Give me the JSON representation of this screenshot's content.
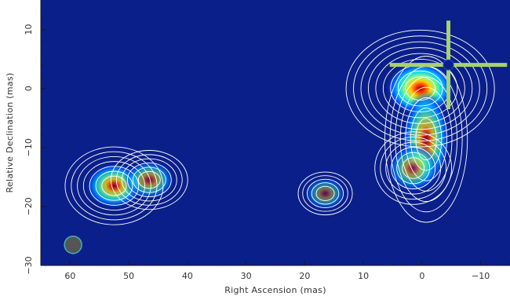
{
  "chart_data": {
    "type": "heatmap",
    "title": "",
    "xlabel": "Right Ascension  (mas)",
    "ylabel": "Relative Declination  (mas)",
    "xlim": [
      65,
      -15
    ],
    "ylim": [
      -30,
      15
    ],
    "x_ticks": [
      60,
      50,
      40,
      30,
      20,
      10,
      0,
      -10
    ],
    "y_ticks": [
      10,
      0,
      -10,
      -20,
      -30
    ],
    "colormap": "jet",
    "background_color": "#0a1f8a",
    "contour_color": "#ffffff",
    "components": [
      {
        "x": 0.3,
        "y": 0.0,
        "peak": 1.0,
        "sx": 2.3,
        "sy": 1.8
      },
      {
        "x": -0.7,
        "y": -8.6,
        "peak": 0.55,
        "sx": 1.6,
        "sy": 3.2
      },
      {
        "x": 1.5,
        "y": -13.5,
        "peak": 0.35,
        "sx": 1.7,
        "sy": 1.6
      },
      {
        "x": 52.5,
        "y": -16.5,
        "peak": 0.62,
        "sx": 1.9,
        "sy": 1.5
      },
      {
        "x": 46.5,
        "y": -15.5,
        "peak": 0.32,
        "sx": 1.7,
        "sy": 1.3
      },
      {
        "x": 16.5,
        "y": -17.8,
        "peak": 0.12,
        "sx": 1.4,
        "sy": 1.1
      }
    ],
    "marker": {
      "type": "cross",
      "x": -4.5,
      "y": 4.0,
      "color": "#a8d26b"
    },
    "beam": {
      "x": 59.5,
      "y": -26.5,
      "color": "#555555",
      "edge_color": "#3fb3b3"
    }
  }
}
